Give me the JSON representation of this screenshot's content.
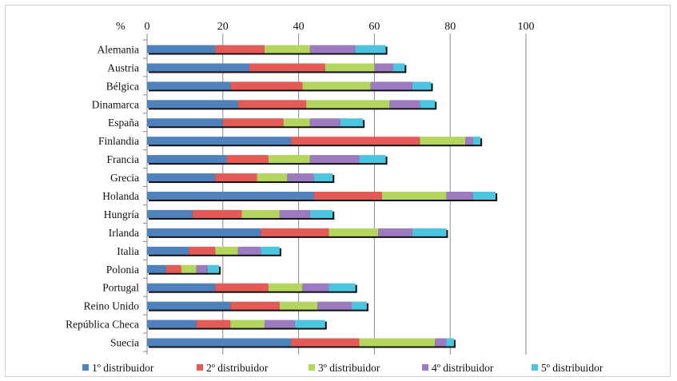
{
  "chart_data": {
    "type": "bar",
    "orientation": "horizontal",
    "stacked": true,
    "unit_label": "%",
    "title": "",
    "xlabel": "",
    "ylabel": "",
    "xlim": [
      0,
      100
    ],
    "x_ticks": [
      0,
      20,
      40,
      60,
      80,
      100
    ],
    "grid": "vertical",
    "legend_position": "bottom",
    "categories": [
      "Alemania",
      "Austria",
      "Bélgica",
      "Dinamarca",
      "España",
      "Finlandia",
      "Francia",
      "Grecia",
      "Holanda",
      "Hungría",
      "Irlanda",
      "Italia",
      "Polonia",
      "Portugal",
      "Reino Unido",
      "República Checa",
      "Suecia"
    ],
    "series": [
      {
        "name": "1º distribuidor",
        "color": "#4F81BD",
        "values": [
          18,
          27,
          22,
          24,
          20,
          38,
          21,
          18,
          44,
          12,
          30,
          11,
          5,
          18,
          22,
          13,
          38
        ]
      },
      {
        "name": "2º distribuidor",
        "color": "#E35A56",
        "values": [
          13,
          20,
          19,
          18,
          16,
          34,
          11,
          11,
          18,
          13,
          18,
          7,
          4,
          14,
          13,
          9,
          18
        ]
      },
      {
        "name": "3º distribuidor",
        "color": "#B4D65E",
        "values": [
          12,
          13,
          18,
          22,
          7,
          12,
          11,
          8,
          17,
          10,
          13,
          6,
          4,
          9,
          10,
          9,
          20
        ]
      },
      {
        "name": "4º distribuidor",
        "color": "#9C7BC0",
        "values": [
          12,
          5,
          11,
          8,
          8,
          2,
          13,
          7,
          7,
          8,
          9,
          6,
          3,
          7,
          9,
          8,
          3
        ]
      },
      {
        "name": "5º distribuidor",
        "color": "#4BC5E0",
        "values": [
          8,
          3,
          5,
          4,
          6,
          2,
          7,
          5,
          6,
          6,
          9,
          5,
          3,
          7,
          4,
          8,
          2
        ]
      }
    ]
  }
}
